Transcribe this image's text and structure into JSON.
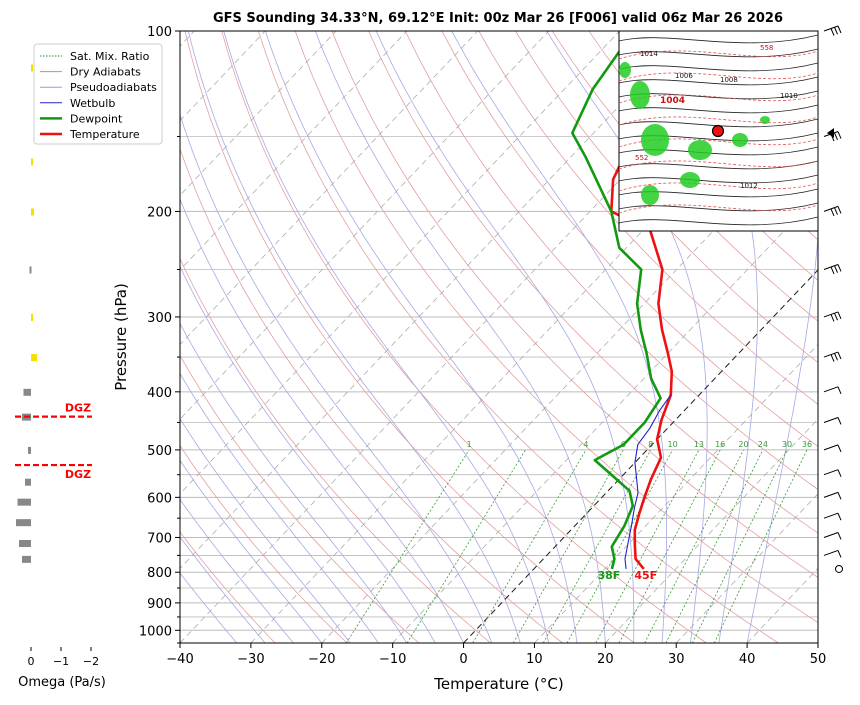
{
  "chart_data": {
    "type": "line",
    "title": "GFS Sounding 34.33°N, 69.12°E Init: 00z Mar 26 [F006] valid 06z Mar 26 2026",
    "xlabel": "Temperature (°C)",
    "ylabel": "Pressure (hPa)",
    "xlim": [
      -40,
      50
    ],
    "ylim_pressure": [
      1050,
      100
    ],
    "log_pressure_axis": true,
    "skew": true,
    "xticks": [
      "−40",
      "−30",
      "−20",
      "−10",
      "0",
      "10",
      "20",
      "30",
      "40",
      "50"
    ],
    "yticks": [
      "100",
      "200",
      "300",
      "400",
      "500",
      "600",
      "700",
      "800",
      "900",
      "1000"
    ],
    "legend_position": "upper-left",
    "legend": [
      {
        "name": "Sat. Mix. Ratio",
        "color": "#2a8a2a",
        "style": "dotted"
      },
      {
        "name": "Dry Adiabats",
        "color": "#e08080",
        "style": "solid"
      },
      {
        "name": "Pseudoadiabats",
        "color": "#9a9ae0",
        "style": "solid"
      },
      {
        "name": "Wetbulb",
        "color": "#2222cc",
        "style": "solid"
      },
      {
        "name": "Dewpoint",
        "color": "#119911",
        "style": "solid"
      },
      {
        "name": "Temperature",
        "color": "#ee1111",
        "style": "solid"
      }
    ],
    "series": [
      {
        "name": "Temperature",
        "color": "#ee1111",
        "points": [
          [
            15.5,
            790
          ],
          [
            13,
            760
          ],
          [
            11,
            720
          ],
          [
            9,
            680
          ],
          [
            7.5,
            640
          ],
          [
            6,
            600
          ],
          [
            4.5,
            560
          ],
          [
            3,
            515
          ],
          [
            0,
            480
          ],
          [
            -2,
            445
          ],
          [
            -4,
            405
          ],
          [
            -7,
            370
          ],
          [
            -10,
            345
          ],
          [
            -14,
            315
          ],
          [
            -18,
            285
          ],
          [
            -22,
            250
          ],
          [
            -29,
            215
          ],
          [
            -37,
            200
          ],
          [
            -41,
            177
          ],
          [
            -43,
            158
          ],
          [
            -46,
            125
          ],
          [
            -48,
            100
          ]
        ]
      },
      {
        "name": "Dewpoint",
        "color": "#119911",
        "points": [
          [
            11,
            790
          ],
          [
            10,
            760
          ],
          [
            8,
            725
          ],
          [
            7,
            670
          ],
          [
            5.5,
            620
          ],
          [
            3,
            585
          ],
          [
            -1,
            555
          ],
          [
            -6,
            520
          ],
          [
            -4,
            490
          ],
          [
            -4,
            450
          ],
          [
            -5,
            410
          ],
          [
            -9,
            380
          ],
          [
            -13,
            345
          ],
          [
            -17,
            315
          ],
          [
            -21,
            285
          ],
          [
            -25,
            250
          ],
          [
            -31,
            230
          ],
          [
            -37,
            200
          ],
          [
            -48,
            162
          ],
          [
            -53,
            148
          ],
          [
            -56,
            125
          ],
          [
            -58,
            100
          ]
        ]
      },
      {
        "name": "Wetbulb",
        "color": "#2222cc",
        "points": [
          [
            13,
            790
          ],
          [
            11.5,
            760
          ],
          [
            10,
            720
          ],
          [
            8,
            670
          ],
          [
            6,
            625
          ],
          [
            4.5,
            590
          ],
          [
            2.5,
            560
          ],
          [
            0,
            525
          ],
          [
            -2,
            490
          ],
          [
            -2.5,
            460
          ],
          [
            -3.5,
            430
          ],
          [
            -4,
            405
          ]
        ]
      }
    ],
    "surface_labels": {
      "temperature": "45F",
      "dewpoint": "38F"
    },
    "mixing_ratio_labels": [
      "1",
      "4",
      "6",
      "8",
      "10",
      "13",
      "16",
      "20",
      "24",
      "30",
      "36"
    ],
    "omega_panel": {
      "xlabel": "Omega (Pa/s)",
      "xticks": [
        "0",
        "−1",
        "−2"
      ],
      "dgz_label": "DGZ",
      "dgz_color": "#ff0000",
      "bars": [
        {
          "p": 115,
          "value": -0.05,
          "color": "#f5e000"
        },
        {
          "p": 165,
          "value": -0.05,
          "color": "#f5e000"
        },
        {
          "p": 200,
          "value": -0.1,
          "color": "#f5e000"
        },
        {
          "p": 250,
          "value": 0.05,
          "color": "#888888"
        },
        {
          "p": 300,
          "value": -0.05,
          "color": "#f5e000"
        },
        {
          "p": 350,
          "value": -0.2,
          "color": "#f5e000"
        },
        {
          "p": 400,
          "value": 0.25,
          "color": "#888888"
        },
        {
          "p": 440,
          "value": 0.3,
          "color": "#888888"
        },
        {
          "p": 500,
          "value": 0.1,
          "color": "#888888"
        },
        {
          "p": 565,
          "value": 0.2,
          "color": "#888888"
        },
        {
          "p": 610,
          "value": 0.45,
          "color": "#888888"
        },
        {
          "p": 660,
          "value": 0.5,
          "color": "#888888"
        },
        {
          "p": 715,
          "value": 0.4,
          "color": "#888888"
        },
        {
          "p": 760,
          "value": 0.3,
          "color": "#888888"
        }
      ]
    },
    "map_inset": {
      "contour_labels": [
        "1004",
        "1006",
        "1008",
        "1010",
        "1012",
        "1014",
        "558",
        "552"
      ]
    }
  }
}
